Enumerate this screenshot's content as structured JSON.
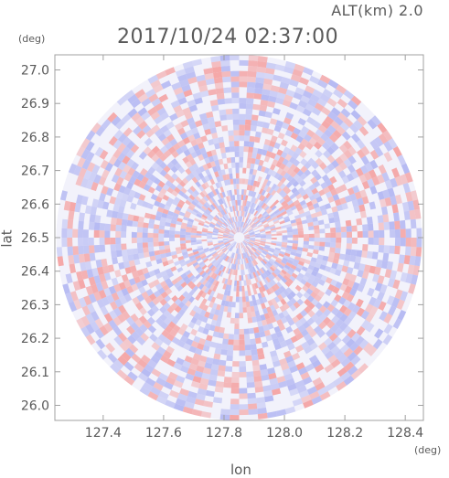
{
  "header": {
    "altitude_label": "ALT(km) 2.0",
    "datetime": "2017/10/24 02:37:00"
  },
  "chart_data": {
    "type": "heatmap",
    "title": "2017/10/24 02:37:00",
    "subtitle": "ALT(km) 2.0",
    "xlabel": "lon",
    "ylabel": "lat",
    "xunit": "(deg)",
    "yunit": "(deg)",
    "xlim": [
      127.24,
      128.46
    ],
    "ylim": [
      25.955,
      27.045
    ],
    "xticks": [
      127.4,
      127.6,
      127.8,
      128.0,
      128.2,
      128.4
    ],
    "xtick_labels": [
      "127.4",
      "127.6",
      "127.8",
      "128.0",
      "128.2",
      "128.4"
    ],
    "yticks": [
      26.0,
      26.1,
      26.2,
      26.3,
      26.4,
      26.5,
      26.6,
      26.7,
      26.8,
      26.9,
      27.0
    ],
    "ytick_labels": [
      "26.0",
      "26.1",
      "26.2",
      "26.3",
      "26.4",
      "26.5",
      "26.6",
      "26.7",
      "26.8",
      "26.9",
      "27.0"
    ],
    "center": {
      "lon": 127.85,
      "lat": 26.5
    },
    "radius_deg_lat": 0.545,
    "colors": {
      "positive": "#f4a3a3",
      "negative": "#b3b7f2",
      "neutral": "#f2f2fb",
      "axis": "#a0a0a0",
      "text": "#5a5a5a"
    },
    "grid": false
  }
}
